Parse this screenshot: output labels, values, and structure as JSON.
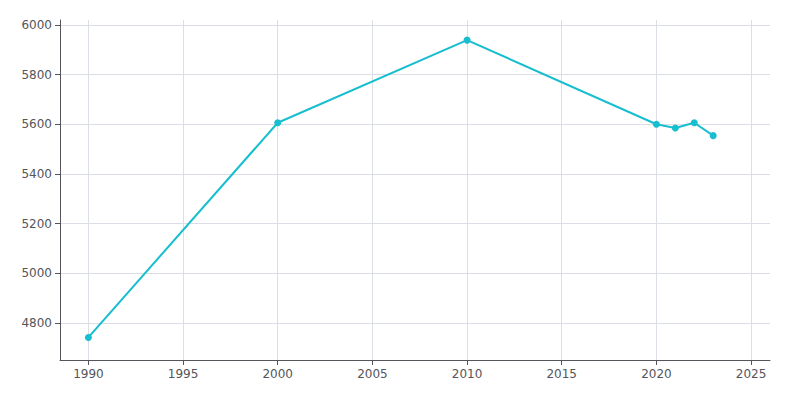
{
  "chart_data": {
    "type": "line",
    "x": [
      1990,
      2000,
      2010,
      2020,
      2021,
      2022,
      2023
    ],
    "values": [
      4741,
      5606,
      5939,
      5600,
      5585,
      5606,
      5554
    ],
    "color": "#17BECF",
    "marker": "circle",
    "xlim": [
      1988.5,
      2026
    ],
    "ylim": [
      4650,
      6020
    ],
    "xticks": [
      1990,
      1995,
      2000,
      2005,
      2010,
      2015,
      2020,
      2025
    ],
    "yticks": [
      4800,
      5000,
      5200,
      5400,
      5600,
      5800,
      6000
    ],
    "grid": true
  }
}
